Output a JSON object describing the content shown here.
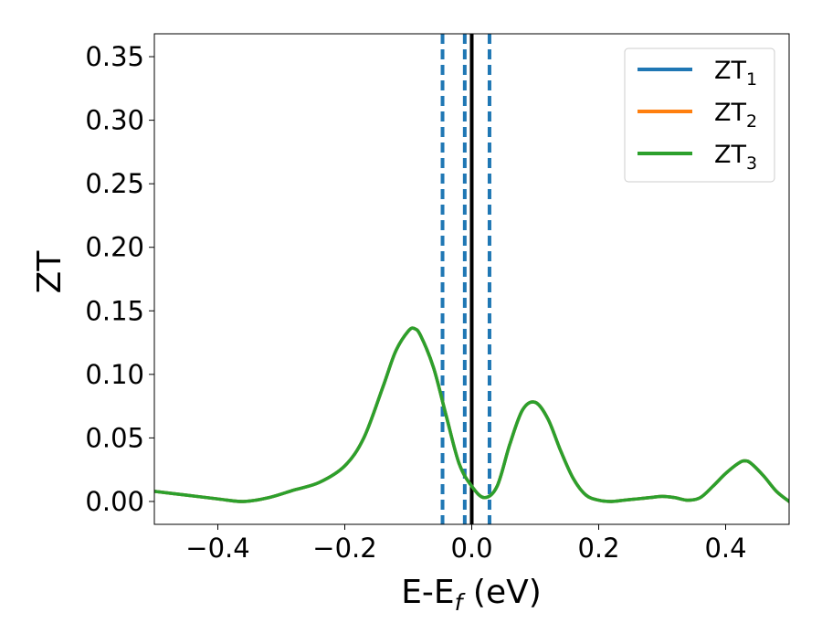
{
  "chart_data": {
    "type": "line",
    "xlabel": "E-E",
    "xlabel_sub": "f",
    "xlabel_unit": " (eV)",
    "ylabel": "ZT",
    "xlim": [
      -0.5,
      0.5
    ],
    "ylim": [
      -0.018,
      0.368
    ],
    "x_ticks": [
      -0.4,
      -0.2,
      0.0,
      0.2,
      0.4
    ],
    "x_tick_labels": [
      "−0.4",
      "−0.2",
      "0.0",
      "0.2",
      "0.4"
    ],
    "y_ticks": [
      0.0,
      0.05,
      0.1,
      0.15,
      0.2,
      0.25,
      0.3,
      0.35
    ],
    "y_tick_labels": [
      "0.00",
      "0.05",
      "0.10",
      "0.15",
      "0.20",
      "0.25",
      "0.30",
      "0.35"
    ],
    "grid": false,
    "legend_position": "top-right",
    "series": [
      {
        "name": "ZT",
        "name_sub": "1",
        "color": "#1f77b4",
        "x": [
          -0.5,
          -0.45,
          -0.4,
          -0.36,
          -0.32,
          -0.28,
          -0.24,
          -0.2,
          -0.17,
          -0.14,
          -0.12,
          -0.1,
          -0.09,
          -0.08,
          -0.06,
          -0.04,
          -0.02,
          0.0,
          0.02,
          0.04,
          0.06,
          0.08,
          0.1,
          0.12,
          0.14,
          0.16,
          0.18,
          0.2,
          0.22,
          0.24,
          0.26,
          0.28,
          0.3,
          0.32,
          0.34,
          0.36,
          0.38,
          0.4,
          0.42,
          0.43,
          0.44,
          0.46,
          0.48,
          0.5
        ],
        "y": [
          0.008,
          0.005,
          0.002,
          0.0,
          0.003,
          0.009,
          0.015,
          0.028,
          0.05,
          0.09,
          0.118,
          0.134,
          0.136,
          0.13,
          0.105,
          0.067,
          0.03,
          0.012,
          0.003,
          0.012,
          0.045,
          0.072,
          0.078,
          0.065,
          0.04,
          0.018,
          0.005,
          0.001,
          0.0,
          0.001,
          0.002,
          0.003,
          0.004,
          0.003,
          0.001,
          0.003,
          0.012,
          0.022,
          0.03,
          0.032,
          0.03,
          0.02,
          0.008,
          0.0
        ]
      },
      {
        "name": "ZT",
        "name_sub": "2",
        "color": "#ff7f0e",
        "x": [
          -0.5,
          -0.45,
          -0.4,
          -0.36,
          -0.32,
          -0.28,
          -0.24,
          -0.2,
          -0.17,
          -0.14,
          -0.12,
          -0.1,
          -0.09,
          -0.08,
          -0.06,
          -0.04,
          -0.02,
          0.0,
          0.02,
          0.04,
          0.06,
          0.08,
          0.1,
          0.12,
          0.14,
          0.16,
          0.18,
          0.2,
          0.22,
          0.24,
          0.26,
          0.28,
          0.3,
          0.32,
          0.34,
          0.36,
          0.38,
          0.4,
          0.42,
          0.43,
          0.44,
          0.46,
          0.48,
          0.5
        ],
        "y": [
          0.008,
          0.005,
          0.002,
          0.0,
          0.003,
          0.009,
          0.015,
          0.028,
          0.05,
          0.09,
          0.118,
          0.134,
          0.136,
          0.13,
          0.105,
          0.067,
          0.03,
          0.012,
          0.003,
          0.012,
          0.045,
          0.072,
          0.078,
          0.065,
          0.04,
          0.018,
          0.005,
          0.001,
          0.0,
          0.001,
          0.002,
          0.003,
          0.004,
          0.003,
          0.001,
          0.003,
          0.012,
          0.022,
          0.03,
          0.032,
          0.03,
          0.02,
          0.008,
          0.0
        ]
      },
      {
        "name": "ZT",
        "name_sub": "3",
        "color": "#2ca02c",
        "x": [
          -0.5,
          -0.45,
          -0.4,
          -0.36,
          -0.32,
          -0.28,
          -0.24,
          -0.2,
          -0.17,
          -0.14,
          -0.12,
          -0.1,
          -0.09,
          -0.08,
          -0.06,
          -0.04,
          -0.02,
          0.0,
          0.02,
          0.04,
          0.06,
          0.08,
          0.1,
          0.12,
          0.14,
          0.16,
          0.18,
          0.2,
          0.22,
          0.24,
          0.26,
          0.28,
          0.3,
          0.32,
          0.34,
          0.36,
          0.38,
          0.4,
          0.42,
          0.43,
          0.44,
          0.46,
          0.48,
          0.5
        ],
        "y": [
          0.008,
          0.005,
          0.002,
          0.0,
          0.003,
          0.009,
          0.015,
          0.028,
          0.05,
          0.09,
          0.118,
          0.134,
          0.136,
          0.13,
          0.105,
          0.067,
          0.03,
          0.012,
          0.003,
          0.012,
          0.045,
          0.072,
          0.078,
          0.065,
          0.04,
          0.018,
          0.005,
          0.001,
          0.0,
          0.001,
          0.002,
          0.003,
          0.004,
          0.003,
          0.001,
          0.003,
          0.012,
          0.022,
          0.03,
          0.032,
          0.03,
          0.02,
          0.008,
          0.0
        ]
      }
    ],
    "vertical_lines": [
      {
        "x": -0.046,
        "style": "dashed",
        "color": "#1f77b4"
      },
      {
        "x": -0.011,
        "style": "dashed",
        "color": "#1f77b4"
      },
      {
        "x": 0.0,
        "style": "solid",
        "color": "#000000"
      },
      {
        "x": 0.028,
        "style": "dashed",
        "color": "#1f77b4"
      }
    ]
  }
}
